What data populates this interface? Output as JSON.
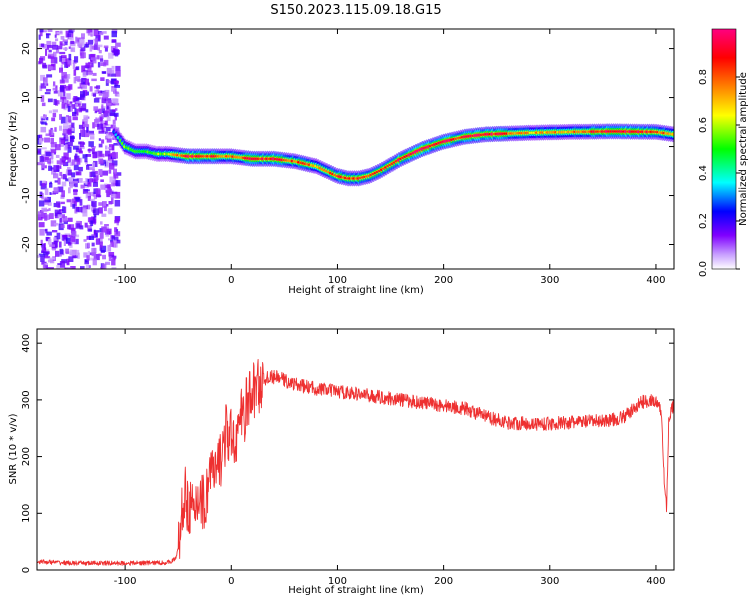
{
  "title": "S150.2023.115.09.18.G15",
  "chart_data": [
    {
      "type": "heatmap",
      "xlabel": "Height of straight line (km)",
      "ylabel": "Frequency (Hz)",
      "xlim": [
        -183,
        417
      ],
      "ylim": [
        -25,
        24
      ],
      "xticks": [
        -100,
        0,
        100,
        200,
        300,
        400
      ],
      "yticks": [
        -20,
        -10,
        0,
        10,
        20
      ],
      "colorbar": {
        "label": "Normalized spectral amplitude",
        "range": [
          0,
          1
        ],
        "ticks": [
          "0.0",
          "0.2",
          "0.4",
          "0.6",
          "0.8"
        ],
        "colormap": [
          "#ffffff",
          "#8000ff",
          "#0000ff",
          "#00ffff",
          "#00ff00",
          "#ffff00",
          "#ff8000",
          "#ff0000",
          "#ff0080"
        ]
      },
      "noise_region_x": [
        -183,
        -108
      ],
      "ridge": {
        "x": [
          -110,
          -100,
          -90,
          -80,
          -70,
          -60,
          -40,
          -20,
          0,
          20,
          40,
          60,
          80,
          100,
          110,
          120,
          130,
          140,
          160,
          180,
          200,
          220,
          240,
          280,
          320,
          360,
          400,
          417
        ],
        "freq": [
          3,
          0,
          -1,
          -1,
          -1.5,
          -1.5,
          -2,
          -2,
          -2,
          -2.5,
          -2.5,
          -3,
          -4,
          -6,
          -6.5,
          -6.5,
          -6,
          -5,
          -2.5,
          -0.5,
          1,
          2,
          2.5,
          2.8,
          3,
          3.1,
          3,
          2.5
        ],
        "peak": [
          0.3,
          0.6,
          0.5,
          0.55,
          0.55,
          0.6,
          0.9,
          0.85,
          0.75,
          0.9,
          0.9,
          0.8,
          0.75,
          0.85,
          0.8,
          0.85,
          0.85,
          0.8,
          0.95,
          0.95,
          0.9,
          0.9,
          0.95,
          0.7,
          0.75,
          0.95,
          0.85,
          0.7
        ]
      }
    },
    {
      "type": "line",
      "xlabel": "Height of straight line (km)",
      "ylabel": "SNR (10 * v/v)",
      "xlim": [
        -183,
        417
      ],
      "ylim": [
        0,
        425
      ],
      "xticks": [
        -100,
        0,
        100,
        200,
        300,
        400
      ],
      "yticks": [
        0,
        100,
        200,
        300,
        400
      ],
      "series": [
        {
          "color": "#ee3030",
          "x": [
            -183,
            -150,
            -100,
            -60,
            -52,
            -48,
            -45,
            -40,
            -35,
            -30,
            -25,
            -20,
            -15,
            -10,
            -5,
            0,
            5,
            10,
            15,
            20,
            25,
            30,
            35,
            45,
            55,
            65,
            80,
            100,
            120,
            140,
            160,
            180,
            200,
            220,
            240,
            260,
            280,
            300,
            320,
            340,
            360,
            370,
            380,
            385,
            395,
            400,
            405,
            408,
            410,
            412,
            415,
            417
          ],
          "y": [
            15,
            12,
            12,
            13,
            20,
            60,
            130,
            120,
            90,
            140,
            110,
            180,
            160,
            200,
            240,
            230,
            240,
            270,
            290,
            315,
            325,
            335,
            340,
            340,
            330,
            325,
            320,
            315,
            310,
            305,
            300,
            295,
            290,
            285,
            270,
            260,
            258,
            258,
            260,
            262,
            265,
            270,
            285,
            295,
            300,
            295,
            280,
            150,
            110,
            260,
            285,
            290
          ]
        }
      ]
    }
  ]
}
